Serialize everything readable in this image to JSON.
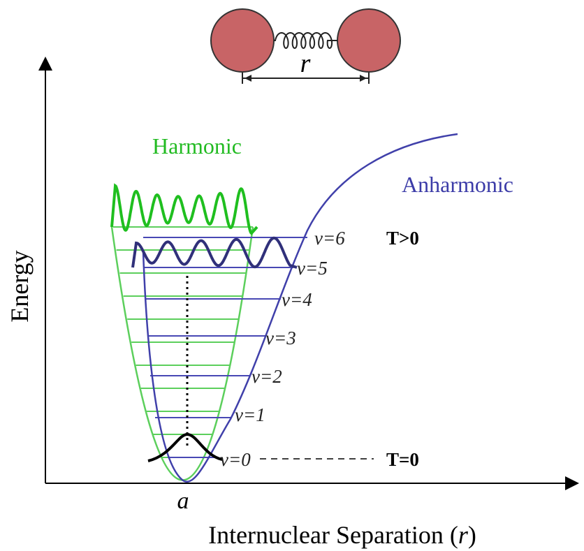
{
  "molecule": {
    "bond_label": "r"
  },
  "axes": {
    "y_label": "Energy",
    "x_label": "Internuclear Separation (",
    "x_label_var": "r",
    "x_label_end": ")",
    "x_marker": "a"
  },
  "curves": {
    "harmonic": "Harmonic",
    "anharmonic": "Anharmonic"
  },
  "levels": [
    "v=0",
    "v=1",
    "v=2",
    "v=3",
    "v=4",
    "v=5",
    "v=6"
  ],
  "temperatures": {
    "hot": "T>0",
    "cold": "T=0"
  }
}
